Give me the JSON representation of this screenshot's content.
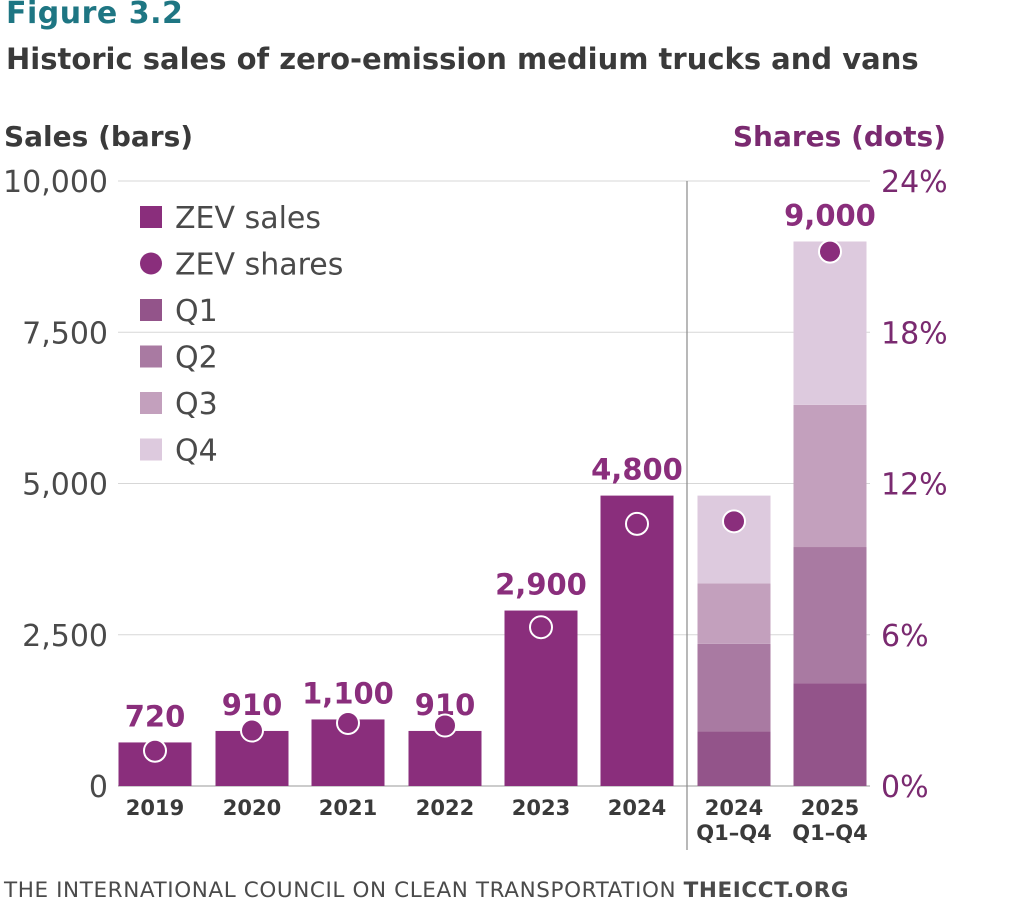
{
  "figure_label": "Figure 3.2",
  "title": "Historic sales of zero-emission medium trucks and vans",
  "footer": {
    "org": "THE INTERNATIONAL COUNCIL ON CLEAN TRANSPORTATION",
    "site": "THEICCT.ORG"
  },
  "colors": {
    "zev": "#8a2e7c",
    "q1": "#93548a",
    "q2": "#a97aa2",
    "q3": "#c3a0bd",
    "q4": "#ddcade",
    "accent": "#7a2a70",
    "axis_text": "#4a4a4a"
  },
  "chart_data": {
    "type": "bar",
    "left_axis_label": "Sales (bars)",
    "right_axis_label": "Shares (dots)",
    "ylim": [
      0,
      10000
    ],
    "yticks": [
      "0",
      "2,500",
      "5,000",
      "7,500",
      "10,000"
    ],
    "ytick_values": [
      0,
      2500,
      5000,
      7500,
      10000
    ],
    "y2lim": [
      0,
      24
    ],
    "y2ticks": [
      "0%",
      "6%",
      "12%",
      "18%",
      "24%"
    ],
    "y2tick_values": [
      0,
      6,
      12,
      18,
      24
    ],
    "grid": true,
    "legend_position": "top-left",
    "legend": [
      {
        "label": "ZEV sales",
        "marker": "square",
        "color": "zev"
      },
      {
        "label": "ZEV shares",
        "marker": "circle",
        "color": "zev"
      },
      {
        "label": "Q1",
        "marker": "square",
        "color": "q1"
      },
      {
        "label": "Q2",
        "marker": "square",
        "color": "q2"
      },
      {
        "label": "Q3",
        "marker": "square",
        "color": "q3"
      },
      {
        "label": "Q4",
        "marker": "square",
        "color": "q4"
      }
    ],
    "annual": [
      {
        "category": "2019",
        "value": 720,
        "value_label": "720",
        "share": 1.4
      },
      {
        "category": "2020",
        "value": 910,
        "value_label": "910",
        "share": 2.2
      },
      {
        "category": "2021",
        "value": 1100,
        "value_label": "1,100",
        "share": 2.5
      },
      {
        "category": "2022",
        "value": 910,
        "value_label": "910",
        "share": 2.4
      },
      {
        "category": "2023",
        "value": 2900,
        "value_label": "2,900",
        "share": 6.3
      },
      {
        "category": "2024",
        "value": 4800,
        "value_label": "4,800",
        "share": 10.4
      }
    ],
    "quarterly": [
      {
        "category": [
          "2024",
          "Q1–Q4"
        ],
        "quarters": [
          900,
          1450,
          1000,
          1450
        ],
        "share": 10.5,
        "value_label": ""
      },
      {
        "category": [
          "2025",
          "Q1–Q4"
        ],
        "quarters": [
          1700,
          2250,
          2350,
          2700
        ],
        "share": 21.2,
        "value_label": "9,000"
      }
    ]
  }
}
